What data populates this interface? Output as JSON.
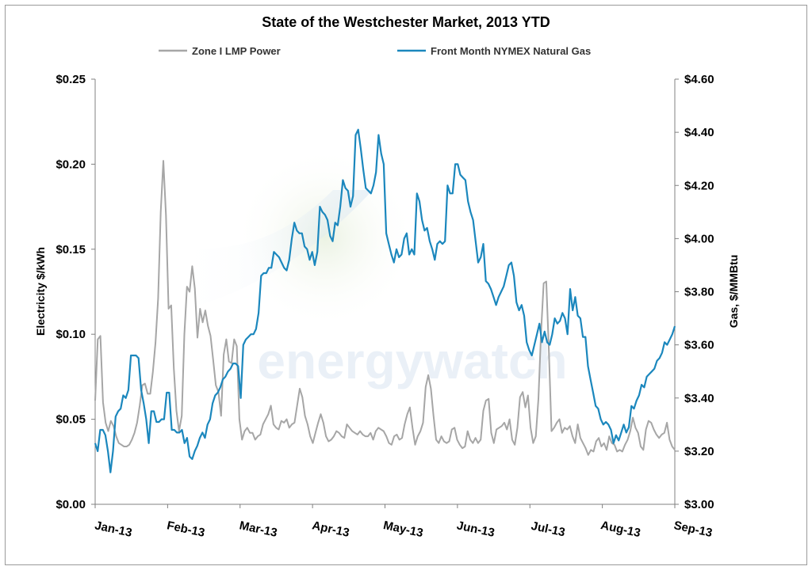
{
  "chart_data": {
    "type": "line",
    "title": "State of the Westchester Market, 2013 YTD",
    "watermark": "energywatch",
    "legend_position": "top",
    "grid": false,
    "x_labels": [
      "Jan-13",
      "Feb-13",
      "Mar-13",
      "Apr-13",
      "May-13",
      "Jun-13",
      "Jul-13",
      "Aug-13",
      "Sep-13"
    ],
    "y_left": {
      "label": "Electricity $/kWh",
      "range": [
        0,
        0.25
      ],
      "ticks": [
        "$0.00",
        "$0.05",
        "$0.10",
        "$0.15",
        "$0.20",
        "$0.25"
      ]
    },
    "y_right": {
      "label": "Gas, $/MMBtu",
      "range": [
        3.0,
        4.6
      ],
      "ticks": [
        "$3.00",
        "$3.20",
        "$3.40",
        "$3.60",
        "$3.80",
        "$4.00",
        "$4.20",
        "$4.40",
        "$4.60"
      ]
    },
    "series": [
      {
        "name": "Zone I LMP Power",
        "axis": "left",
        "color": "#a6a6a6",
        "values": [
          0.061,
          0.097,
          0.099,
          0.06,
          0.048,
          0.043,
          0.049,
          0.046,
          0.04,
          0.036,
          0.035,
          0.034,
          0.034,
          0.035,
          0.038,
          0.042,
          0.048,
          0.058,
          0.07,
          0.071,
          0.065,
          0.065,
          0.078,
          0.095,
          0.121,
          0.172,
          0.202,
          0.17,
          0.115,
          0.117,
          0.08,
          0.055,
          0.043,
          0.052,
          0.1,
          0.128,
          0.125,
          0.14,
          0.127,
          0.098,
          0.115,
          0.107,
          0.114,
          0.105,
          0.099,
          0.085,
          0.07,
          0.066,
          0.052,
          0.088,
          0.097,
          0.084,
          0.083,
          0.097,
          0.093,
          0.05,
          0.038,
          0.043,
          0.045,
          0.042,
          0.042,
          0.038,
          0.04,
          0.041,
          0.047,
          0.05,
          0.053,
          0.058,
          0.047,
          0.045,
          0.044,
          0.049,
          0.048,
          0.05,
          0.045,
          0.047,
          0.048,
          0.058,
          0.068,
          0.063,
          0.052,
          0.047,
          0.04,
          0.036,
          0.042,
          0.048,
          0.053,
          0.048,
          0.04,
          0.037,
          0.038,
          0.04,
          0.043,
          0.042,
          0.04,
          0.039,
          0.047,
          0.045,
          0.043,
          0.042,
          0.041,
          0.043,
          0.041,
          0.04,
          0.04,
          0.042,
          0.038,
          0.043,
          0.045,
          0.044,
          0.043,
          0.04,
          0.036,
          0.035,
          0.04,
          0.041,
          0.038,
          0.039,
          0.047,
          0.053,
          0.057,
          0.045,
          0.035,
          0.04,
          0.043,
          0.048,
          0.069,
          0.076,
          0.068,
          0.052,
          0.038,
          0.036,
          0.04,
          0.037,
          0.036,
          0.037,
          0.044,
          0.045,
          0.038,
          0.035,
          0.033,
          0.034,
          0.043,
          0.038,
          0.036,
          0.039,
          0.036,
          0.038,
          0.055,
          0.061,
          0.062,
          0.042,
          0.036,
          0.044,
          0.045,
          0.046,
          0.048,
          0.044,
          0.05,
          0.038,
          0.035,
          0.045,
          0.063,
          0.066,
          0.057,
          0.064,
          0.045,
          0.036,
          0.04,
          0.062,
          0.101,
          0.13,
          0.131,
          0.09,
          0.043,
          0.045,
          0.048,
          0.05,
          0.042,
          0.045,
          0.044,
          0.046,
          0.04,
          0.036,
          0.047,
          0.039,
          0.036,
          0.033,
          0.029,
          0.032,
          0.031,
          0.037,
          0.039,
          0.034,
          0.036,
          0.032,
          0.04,
          0.036,
          0.035,
          0.031,
          0.032,
          0.031,
          0.035,
          0.038,
          0.043,
          0.051,
          0.045,
          0.042,
          0.034,
          0.032,
          0.044,
          0.049,
          0.048,
          0.044,
          0.041,
          0.039,
          0.041,
          0.042,
          0.048,
          0.038,
          0.034,
          0.032
        ]
      },
      {
        "name": "Front Month NYMEX Natural Gas",
        "axis": "right",
        "color": "#1b87bd",
        "values": [
          3.23,
          3.2,
          3.28,
          3.28,
          3.26,
          3.2,
          3.12,
          3.2,
          3.33,
          3.35,
          3.36,
          3.41,
          3.4,
          3.43,
          3.56,
          3.56,
          3.56,
          3.55,
          3.43,
          3.38,
          3.32,
          3.23,
          3.35,
          3.35,
          3.31,
          3.31,
          3.32,
          3.32,
          3.42,
          3.42,
          3.28,
          3.28,
          3.27,
          3.27,
          3.28,
          3.23,
          3.25,
          3.18,
          3.17,
          3.2,
          3.22,
          3.25,
          3.27,
          3.25,
          3.3,
          3.32,
          3.38,
          3.41,
          3.42,
          3.44,
          3.47,
          3.48,
          3.5,
          3.51,
          3.53,
          3.53,
          3.52,
          3.4,
          3.6,
          3.62,
          3.63,
          3.64,
          3.64,
          3.66,
          3.72,
          3.86,
          3.87,
          3.87,
          3.89,
          3.89,
          3.95,
          3.94,
          3.93,
          3.91,
          3.89,
          3.88,
          3.92,
          4.0,
          4.06,
          4.03,
          4.02,
          4.02,
          3.97,
          3.96,
          3.92,
          3.95,
          3.9,
          3.95,
          4.12,
          4.1,
          4.09,
          4.07,
          4.01,
          3.99,
          4.06,
          4.05,
          4.12,
          4.22,
          4.19,
          4.18,
          4.12,
          4.16,
          4.39,
          4.41,
          4.34,
          4.26,
          4.19,
          4.18,
          4.17,
          4.2,
          4.25,
          4.39,
          4.32,
          4.28,
          4.02,
          3.98,
          3.94,
          3.91,
          3.96,
          3.93,
          3.94,
          4.0,
          4.02,
          3.94,
          3.96,
          3.94,
          4.17,
          4.14,
          4.07,
          4.03,
          4.04,
          3.99,
          3.96,
          3.92,
          3.98,
          3.99,
          3.98,
          3.99,
          4.2,
          4.17,
          4.17,
          4.28,
          4.28,
          4.24,
          4.23,
          4.22,
          4.14,
          4.1,
          4.07,
          3.99,
          3.91,
          3.93,
          3.98,
          3.84,
          3.83,
          3.81,
          3.78,
          3.75,
          3.78,
          3.8,
          3.82,
          3.86,
          3.9,
          3.91,
          3.86,
          3.76,
          3.73,
          3.75,
          3.71,
          3.61,
          3.58,
          3.56,
          3.6,
          3.64,
          3.68,
          3.61,
          3.65,
          3.61,
          3.6,
          3.64,
          3.7,
          3.68,
          3.69,
          3.72,
          3.7,
          3.64,
          3.81,
          3.73,
          3.78,
          3.71,
          3.7,
          3.63,
          3.63,
          3.52,
          3.47,
          3.42,
          3.37,
          3.36,
          3.32,
          3.3,
          3.31,
          3.3,
          3.28,
          3.23,
          3.26,
          3.24,
          3.27,
          3.3,
          3.27,
          3.29,
          3.37,
          3.36,
          3.39,
          3.41,
          3.45,
          3.44,
          3.48,
          3.49,
          3.5,
          3.51,
          3.54,
          3.55,
          3.57,
          3.61,
          3.6,
          3.62,
          3.64,
          3.67
        ]
      }
    ]
  }
}
